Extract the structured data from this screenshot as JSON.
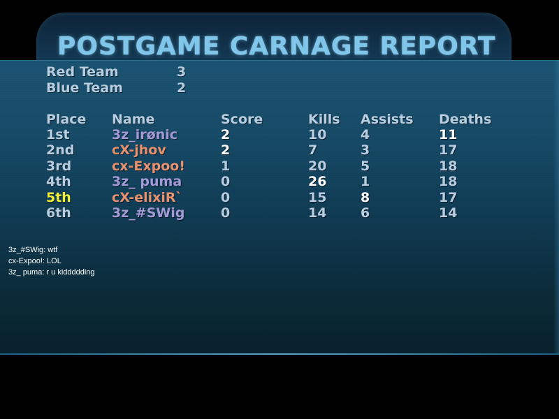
{
  "title": "POSTGAME CARNAGE REPORT",
  "teams": [
    {
      "name": "Red Team",
      "score": "3"
    },
    {
      "name": "Blue Team",
      "score": "2"
    }
  ],
  "headers": {
    "place": "Place",
    "name": "Name",
    "score": "Score",
    "kills": "Kills",
    "assists": "Assists",
    "deaths": "Deaths"
  },
  "players": [
    {
      "place": "1st",
      "name": "3z_irønic",
      "score": "2",
      "kills": "10",
      "assists": "4",
      "deaths": "11"
    },
    {
      "place": "2nd",
      "name": "cX-jhov",
      "score": "2",
      "kills": "7",
      "assists": "3",
      "deaths": "17"
    },
    {
      "place": "3rd",
      "name": "cx-Expoo!",
      "score": "1",
      "kills": "20",
      "assists": "5",
      "deaths": "18"
    },
    {
      "place": "4th",
      "name": "3z_ puma",
      "score": "0",
      "kills": "26",
      "assists": "1",
      "deaths": "18"
    },
    {
      "place": "5th",
      "name": "cX-elixiR`",
      "score": "0",
      "kills": "15",
      "assists": "8",
      "deaths": "17"
    },
    {
      "place": "6th",
      "name": "3z_#SWig",
      "score": "0",
      "kills": "14",
      "assists": "6",
      "deaths": "14"
    }
  ],
  "chat": [
    "3z_#SWig: wtf",
    "cx-Expoo!: LOL",
    "3z_ puma: r u kiddddding"
  ],
  "colors": {
    "title": "#7fc6ea",
    "label": "#b8cde0",
    "blue_team_player": "#a59ad8",
    "red_team_player": "#e8916f",
    "highlight_place": "#f0f03a",
    "best_stat": "#ffffff"
  }
}
